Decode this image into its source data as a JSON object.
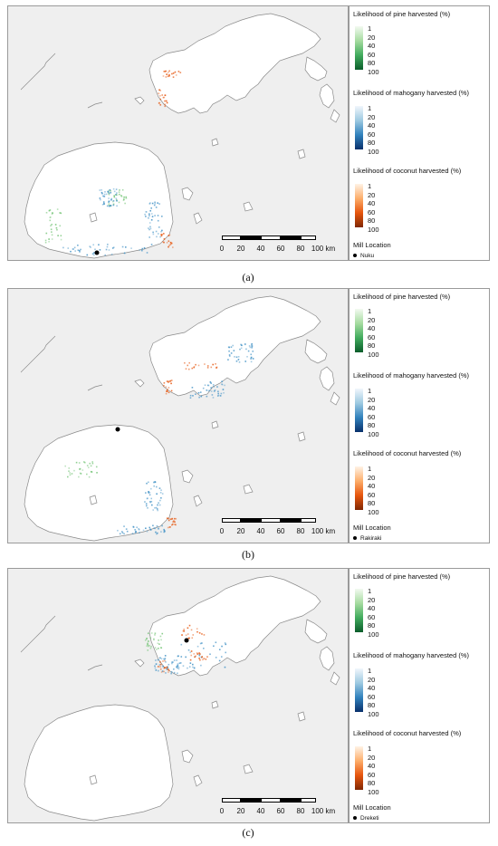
{
  "panels": [
    {
      "caption": "(a)",
      "mill_name": "Nuku",
      "mill_dot": {
        "x_pct": 26.1,
        "y_pct": 97.0
      },
      "harvest_pattern": "nuku"
    },
    {
      "caption": "(b)",
      "mill_name": "Rakiraki",
      "mill_dot": {
        "x_pct": 32.3,
        "y_pct": 55.5
      },
      "harvest_pattern": "rakiraki"
    },
    {
      "caption": "(c)",
      "mill_name": "Dreketi",
      "mill_dot": {
        "x_pct": 52.5,
        "y_pct": 28.3
      },
      "harvest_pattern": "dreketi"
    }
  ],
  "legend": {
    "pine_title": "Likelihood of pine harvested (%)",
    "mahogany_title": "Likelihood of mahogany harvested (%)",
    "coconut_title": "Likelihood of coconut harvested (%)",
    "mill_title": "Mill Location",
    "scale_ticks": [
      "1",
      "20",
      "40",
      "60",
      "80",
      "100"
    ],
    "colors": {
      "pine": [
        "#f3faf1",
        "#0a5d2a"
      ],
      "mahogany": [
        "#f1f6fc",
        "#08306b"
      ],
      "coconut": [
        "#fff3e6",
        "#7f2704"
      ]
    }
  },
  "scalebar": {
    "ticks": [
      "0",
      "20",
      "40",
      "60",
      "80",
      "100 km"
    ]
  },
  "map_colors": {
    "sea": "#efefef",
    "land": "#ffffff",
    "coast": "#8a8a8a"
  }
}
